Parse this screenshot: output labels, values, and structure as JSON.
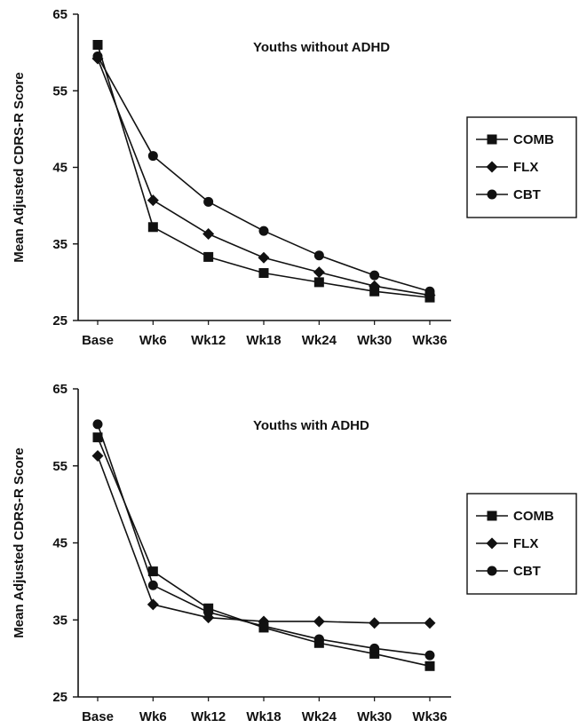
{
  "chart_data": [
    {
      "type": "line",
      "title": "Youths without ADHD",
      "ylabel": "Mean Adjusted CDRS-R Score",
      "xlabel": "",
      "categories": [
        "Base",
        "Wk6",
        "Wk12",
        "Wk18",
        "Wk24",
        "Wk30",
        "Wk36"
      ],
      "yticks": [
        "25",
        "35",
        "45",
        "55",
        "65"
      ],
      "ylim": [
        25,
        65
      ],
      "grid": false,
      "legend_position": "right",
      "series": [
        {
          "name": "COMB",
          "marker": "square",
          "values": [
            61.0,
            37.2,
            33.3,
            31.2,
            30.0,
            28.8,
            28.0
          ]
        },
        {
          "name": "FLX",
          "marker": "diamond",
          "values": [
            59.2,
            40.7,
            36.3,
            33.2,
            31.3,
            29.5,
            28.3
          ]
        },
        {
          "name": "CBT",
          "marker": "circle",
          "values": [
            59.5,
            46.5,
            40.5,
            36.7,
            33.5,
            30.9,
            28.8
          ]
        }
      ]
    },
    {
      "type": "line",
      "title": "Youths with ADHD",
      "ylabel": "Mean Adjusted CDRS-R Score",
      "xlabel": "",
      "categories": [
        "Base",
        "Wk6",
        "Wk12",
        "Wk18",
        "Wk24",
        "Wk30",
        "Wk36"
      ],
      "yticks": [
        "25",
        "35",
        "45",
        "55",
        "65"
      ],
      "ylim": [
        25,
        65
      ],
      "grid": false,
      "legend_position": "right",
      "series": [
        {
          "name": "COMB",
          "marker": "square",
          "values": [
            58.7,
            41.3,
            36.5,
            34.0,
            32.0,
            30.6,
            29.0
          ]
        },
        {
          "name": "FLX",
          "marker": "diamond",
          "values": [
            56.3,
            37.0,
            35.3,
            34.8,
            34.8,
            34.6,
            34.6
          ]
        },
        {
          "name": "CBT",
          "marker": "circle",
          "values": [
            60.4,
            39.5,
            36.0,
            34.2,
            32.5,
            31.3,
            30.4
          ]
        }
      ]
    }
  ]
}
